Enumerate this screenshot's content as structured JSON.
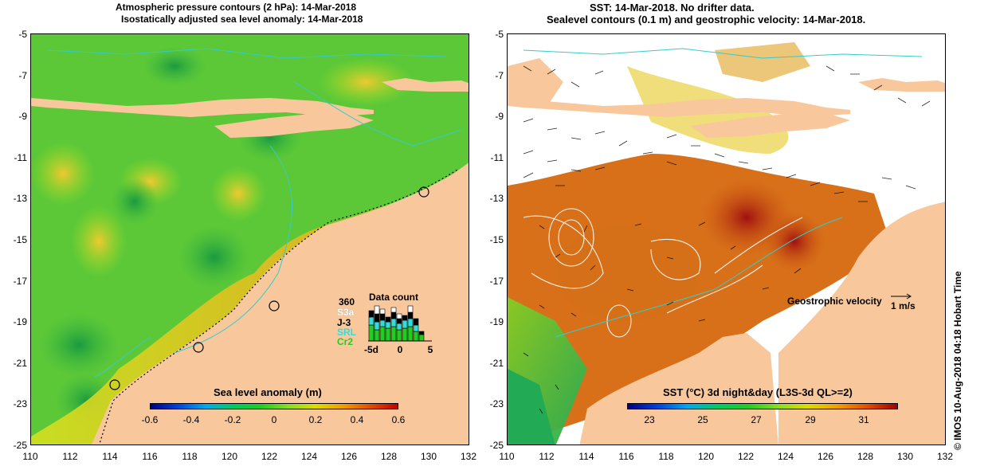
{
  "left_panel": {
    "title_line1": "Atmospheric pressure contours (2 hPa): 14-Mar-2018",
    "title_line2": "Isostatically adjusted sea level anomaly: 14-Mar-2018",
    "colorbar_title": "Sea level anomaly (m)",
    "colorbar_ticks": [
      "-0.6",
      "-0.4",
      "-0.2",
      "0",
      "0.2",
      "0.4",
      "0.6"
    ],
    "data_count": {
      "title": "Data count",
      "max_label": "360",
      "satellites": [
        "S3a",
        "J-3",
        "SRL",
        "Cr2"
      ],
      "satellite_colors": [
        "#ffffff",
        "#000000",
        "#33dddd",
        "#22cc22"
      ],
      "axis_ticks": [
        "-5d",
        "0",
        "5"
      ]
    }
  },
  "right_panel": {
    "title_line1": "SST: 14-Mar-2018. No drifter data.",
    "title_line2": "Sealevel contours (0.1 m) and geostrophic velocity: 14-Mar-2018.",
    "colorbar_title": "SST (°C) 3d night&day (L3S-3d QL>=2)",
    "colorbar_ticks": [
      "23",
      "25",
      "27",
      "29",
      "31"
    ],
    "velocity_legend": "Geostrophic velocity",
    "velocity_unit": "1 m/s"
  },
  "axes": {
    "x_ticks": [
      "110",
      "112",
      "114",
      "116",
      "118",
      "120",
      "122",
      "124",
      "126",
      "128",
      "130",
      "132"
    ],
    "y_ticks": [
      "-5",
      "-7",
      "-9",
      "-11",
      "-13",
      "-15",
      "-17",
      "-19",
      "-21",
      "-23",
      "-25"
    ]
  },
  "side_caption": "© IMOS 10-Aug-2018 04:18 Hobart Time",
  "colors": {
    "land": "#f8c89c",
    "coast_line": "#33cccc",
    "contour_line": "#ffffff"
  }
}
